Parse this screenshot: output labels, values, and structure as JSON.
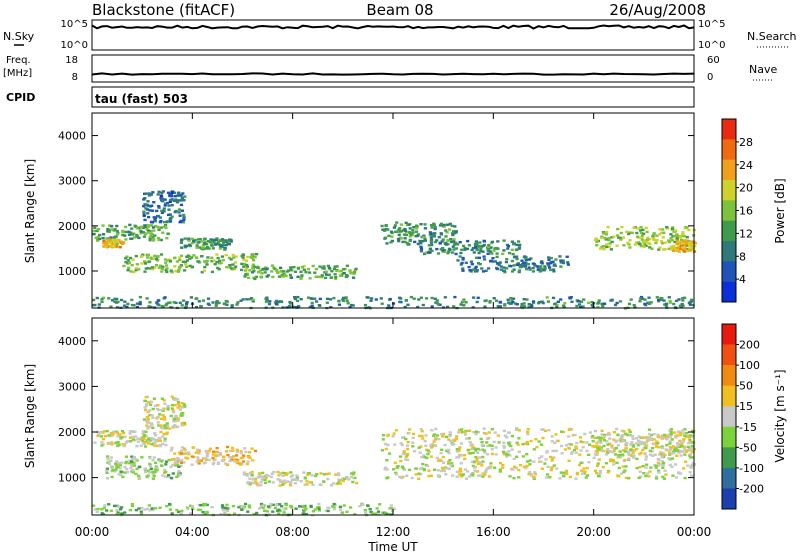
{
  "header": {
    "station": "Blackstone (fitACF)",
    "beam": "Beam 08",
    "date": "26/Aug/2008"
  },
  "chart_data": [
    {
      "type": "line",
      "panel": "noise",
      "left_label": "N.Sky",
      "right_label": "N.Search",
      "yticks_left": [
        "10^5",
        "10^0"
      ],
      "yticks_right": [
        "10^5",
        "10^0"
      ]
    },
    {
      "type": "line",
      "panel": "frequency",
      "left_label_line1": "Freq.",
      "left_label_line2": "[MHz]",
      "right_label": "Nave",
      "yticks_left": [
        "18",
        "8"
      ],
      "yticks_right": [
        "60",
        "0"
      ],
      "ylim_left": [
        8,
        18
      ],
      "ylim_right": [
        0,
        60
      ]
    },
    {
      "type": "text",
      "panel": "cpid",
      "label": "CPID",
      "value": "tau (fast) 503"
    },
    {
      "type": "heatmap",
      "panel": "power",
      "ylabel": "Slant Range [km]",
      "yticks": [
        "4000",
        "3000",
        "2000",
        "1000"
      ],
      "ylim": [
        180,
        4500
      ],
      "colorbar_label": "Power [dB]",
      "colorbar_ticks": [
        "28",
        "24",
        "20",
        "16",
        "12",
        "8",
        "4"
      ],
      "colors": [
        "#0a2fd8",
        "#1f55b8",
        "#2e7a7a",
        "#3f9a4c",
        "#7cc23a",
        "#cfd22a",
        "#f0a01a",
        "#f06a10",
        "#e82a10"
      ],
      "blobs": [
        {
          "t": [
            0.0,
            3.0
          ],
          "r": [
            1700,
            2050
          ],
          "v": 12
        },
        {
          "t": [
            0.4,
            1.2
          ],
          "r": [
            1550,
            1720
          ],
          "v": 21
        },
        {
          "t": [
            2.0,
            3.7
          ],
          "r": [
            2100,
            2800
          ],
          "v": 6
        },
        {
          "t": [
            1.2,
            6.5
          ],
          "r": [
            1000,
            1400
          ],
          "v": 14
        },
        {
          "t": [
            3.5,
            5.5
          ],
          "r": [
            1500,
            1750
          ],
          "v": 10
        },
        {
          "t": [
            6.0,
            10.5
          ],
          "r": [
            850,
            1150
          ],
          "v": 13
        },
        {
          "t": [
            0.0,
            24.0
          ],
          "r": [
            200,
            450
          ],
          "v": 9
        },
        {
          "t": [
            11.5,
            14.5
          ],
          "r": [
            1600,
            2100
          ],
          "v": 10
        },
        {
          "t": [
            13.0,
            17.0
          ],
          "r": [
            1400,
            1700
          ],
          "v": 9
        },
        {
          "t": [
            14.5,
            19.0
          ],
          "r": [
            1000,
            1350
          ],
          "v": 7
        },
        {
          "t": [
            20.0,
            24.0
          ],
          "r": [
            1500,
            2000
          ],
          "v": 16
        },
        {
          "t": [
            23.0,
            24.0
          ],
          "r": [
            1450,
            1700
          ],
          "v": 21
        }
      ]
    },
    {
      "type": "heatmap",
      "panel": "velocity",
      "ylabel": "Slant Range [km]",
      "yticks": [
        "4000",
        "3000",
        "2000",
        "1000"
      ],
      "ylim": [
        180,
        4500
      ],
      "colorbar_label": "Velocity [m s⁻¹]",
      "colorbar_ticks": [
        "200",
        "100",
        "50",
        "15",
        "-15",
        "-50",
        "-100",
        "-200"
      ],
      "colors": [
        "#1c3fb0",
        "#2f6fa0",
        "#3f9a4c",
        "#7cd23a",
        "#c8c8c8",
        "#f0c020",
        "#f08a10",
        "#f05010",
        "#e81a10"
      ],
      "blobs": [
        {
          "t": [
            0.0,
            3.0
          ],
          "r": [
            1700,
            2050
          ],
          "v": 0
        },
        {
          "t": [
            2.0,
            3.7
          ],
          "r": [
            2100,
            2800
          ],
          "v": 0
        },
        {
          "t": [
            0.5,
            3.5
          ],
          "r": [
            1000,
            1500
          ],
          "v": -40
        },
        {
          "t": [
            3.0,
            6.5
          ],
          "r": [
            1300,
            1700
          ],
          "v": 45
        },
        {
          "t": [
            6.0,
            10.5
          ],
          "r": [
            850,
            1150
          ],
          "v": 0
        },
        {
          "t": [
            0.0,
            12.0
          ],
          "r": [
            200,
            450
          ],
          "v": -60
        },
        {
          "t": [
            11.5,
            24.0
          ],
          "r": [
            1000,
            2100
          ],
          "v": 0
        },
        {
          "t": [
            20.0,
            24.0
          ],
          "r": [
            1500,
            2000
          ],
          "v": 0
        }
      ]
    }
  ],
  "x_axis": {
    "label": "Time UT",
    "ticks": [
      "00:00",
      "04:00",
      "08:00",
      "12:00",
      "16:00",
      "20:00",
      "00:00"
    ],
    "xlim_hours": [
      0,
      24
    ]
  }
}
